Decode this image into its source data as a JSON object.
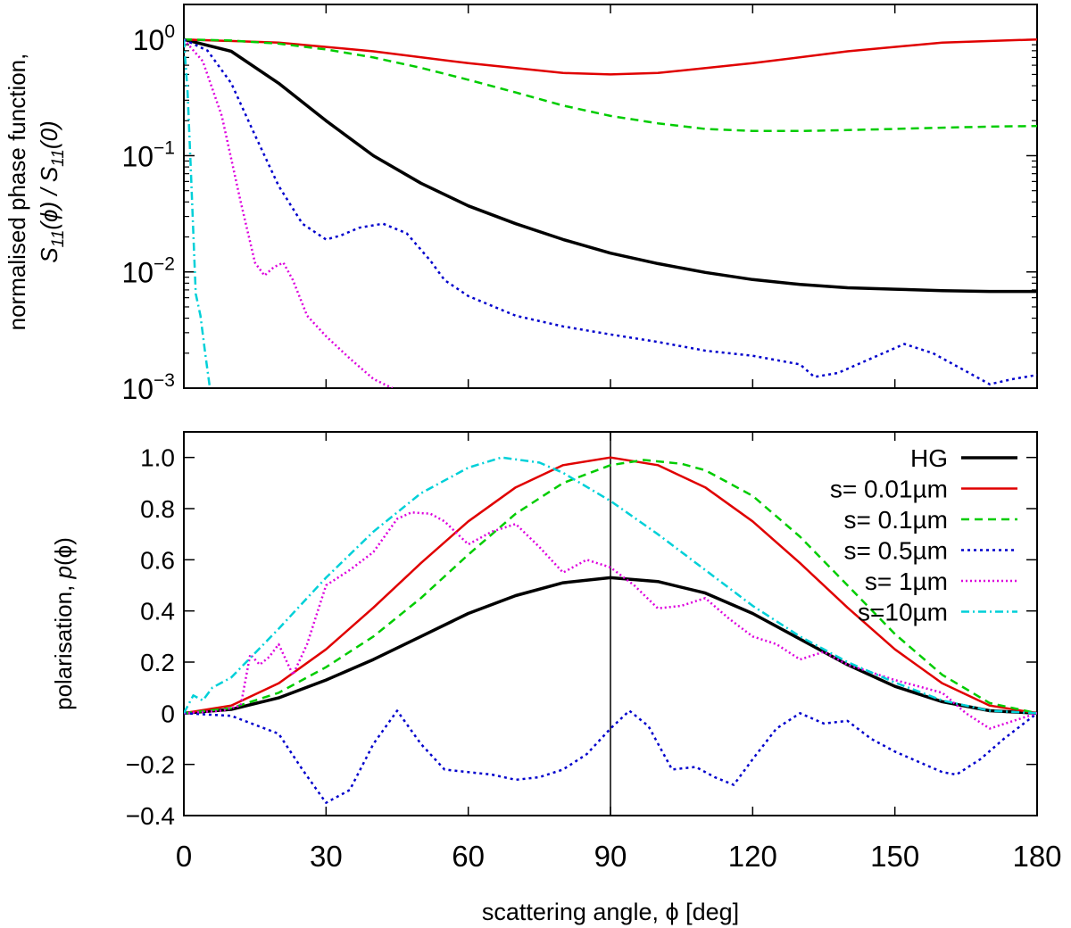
{
  "chart_data": [
    {
      "type": "line",
      "yscale": "log",
      "xlim": [
        0,
        180
      ],
      "ylim": [
        0.001,
        2
      ],
      "xticks": [
        0,
        30,
        60,
        90,
        120,
        150,
        180
      ],
      "yticks": [
        {
          "value": 1,
          "base": "10",
          "exp": "0"
        },
        {
          "value": 0.1,
          "base": "10",
          "exp": "−1"
        },
        {
          "value": 0.01,
          "base": "10",
          "exp": "−2"
        },
        {
          "value": 0.001,
          "base": "10",
          "exp": "−3"
        }
      ],
      "ylabel_line1": "normalised phase function,",
      "ylabel_line2": {
        "a": "S",
        "a_sub": "11",
        "b": "(ϕ) / ",
        "c": "S",
        "c_sub": "11",
        "d": "(0)"
      },
      "series": [
        {
          "name": "HG",
          "color": "#000000",
          "dash": "",
          "width": 3.5,
          "x": [
            0,
            10,
            20,
            30,
            40,
            50,
            60,
            70,
            80,
            90,
            100,
            110,
            120,
            130,
            140,
            150,
            160,
            170,
            180
          ],
          "y": [
            1,
            0.79,
            0.42,
            0.2,
            0.1,
            0.058,
            0.037,
            0.026,
            0.019,
            0.0145,
            0.0118,
            0.0099,
            0.0086,
            0.0078,
            0.0073,
            0.0071,
            0.0069,
            0.0068,
            0.0068
          ]
        },
        {
          "name": "s=  0.01µm",
          "color": "#e00000",
          "dash": "",
          "width": 2.5,
          "x": [
            0,
            20,
            40,
            60,
            80,
            90,
            100,
            120,
            140,
            160,
            180
          ],
          "y": [
            1,
            0.94,
            0.79,
            0.625,
            0.515,
            0.5,
            0.515,
            0.625,
            0.79,
            0.94,
            1
          ]
        },
        {
          "name": "s=  0.1µm",
          "color": "#00cc00",
          "dash": "9,6",
          "width": 2.5,
          "x": [
            0,
            10,
            20,
            30,
            40,
            50,
            60,
            70,
            80,
            90,
            100,
            110,
            120,
            130,
            140,
            150,
            160,
            170,
            180
          ],
          "y": [
            1,
            0.98,
            0.92,
            0.82,
            0.7,
            0.57,
            0.45,
            0.35,
            0.27,
            0.22,
            0.19,
            0.17,
            0.163,
            0.163,
            0.166,
            0.17,
            0.174,
            0.178,
            0.18
          ]
        },
        {
          "name": "s=  0.5µm",
          "color": "#0000cc",
          "dash": "3,4",
          "width": 2.5,
          "x": [
            0,
            5,
            10,
            15,
            20,
            25,
            30,
            33,
            37,
            42,
            47,
            52,
            55,
            60,
            70,
            80,
            90,
            100,
            110,
            120,
            130,
            133,
            138,
            145,
            152,
            158,
            165,
            170,
            175,
            180
          ],
          "y": [
            1,
            0.8,
            0.42,
            0.15,
            0.055,
            0.026,
            0.019,
            0.0205,
            0.024,
            0.026,
            0.0215,
            0.0125,
            0.0085,
            0.0062,
            0.0042,
            0.0034,
            0.0029,
            0.0025,
            0.0021,
            0.0019,
            0.0016,
            0.00125,
            0.00135,
            0.0018,
            0.0024,
            0.002,
            0.0014,
            0.00108,
            0.0012,
            0.0013
          ]
        },
        {
          "name": "s=  1µm",
          "color": "#dd00dd",
          "dash": "2,3",
          "width": 2.5,
          "x": [
            0,
            4,
            8,
            12,
            15,
            17,
            19,
            21,
            23,
            26,
            30,
            35,
            40,
            44
          ],
          "y": [
            1,
            0.65,
            0.22,
            0.04,
            0.012,
            0.0093,
            0.011,
            0.012,
            0.0085,
            0.0042,
            0.0028,
            0.0018,
            0.0012,
            0.001
          ]
        },
        {
          "name": "s=10µm",
          "color": "#00d0d8",
          "dash": "9,4,2,4",
          "width": 2.5,
          "x": [
            0,
            0.8,
            1.5,
            2.5,
            3.5,
            4.5,
            5.5
          ],
          "y": [
            1,
            0.35,
            0.07,
            0.0065,
            0.0042,
            0.002,
            0.001
          ]
        }
      ]
    },
    {
      "type": "line",
      "xlim": [
        0,
        180
      ],
      "ylim": [
        -0.4,
        1.1
      ],
      "xticks": [
        0,
        30,
        60,
        90,
        120,
        150,
        180
      ],
      "yticks": [
        1.0,
        0.8,
        0.6,
        0.4,
        0.2,
        0,
        -0.2,
        -0.4
      ],
      "ytick_labels": [
        "1.0",
        "0.8",
        "0.6",
        "0.4",
        "0.2",
        "0",
        "−0.2",
        "−0.4"
      ],
      "ylabel": {
        "a": "polarisation, ",
        "b": "p",
        "c": "(ϕ)"
      },
      "xlabel": "scattering angle, ϕ [deg]",
      "vline_x": 90,
      "legend_position": "top-right",
      "series": [
        {
          "name": "HG",
          "color": "#000000",
          "dash": "",
          "width": 3.5,
          "x": [
            0,
            10,
            20,
            30,
            40,
            50,
            60,
            70,
            80,
            90,
            100,
            110,
            120,
            130,
            140,
            150,
            160,
            170,
            180
          ],
          "y": [
            0,
            0.015,
            0.06,
            0.13,
            0.21,
            0.3,
            0.39,
            0.46,
            0.51,
            0.53,
            0.515,
            0.47,
            0.39,
            0.29,
            0.19,
            0.105,
            0.045,
            0.01,
            0
          ]
        },
        {
          "name": "s=  0.01µm",
          "color": "#e00000",
          "dash": "",
          "width": 2.5,
          "x": [
            0,
            10,
            20,
            30,
            40,
            50,
            60,
            70,
            80,
            90,
            100,
            110,
            120,
            130,
            140,
            150,
            160,
            170,
            180
          ],
          "y": [
            0,
            0.03,
            0.117,
            0.25,
            0.413,
            0.587,
            0.75,
            0.883,
            0.97,
            1,
            0.97,
            0.883,
            0.75,
            0.587,
            0.413,
            0.25,
            0.117,
            0.03,
            0
          ]
        },
        {
          "name": "s=  0.1µm",
          "color": "#00cc00",
          "dash": "9,6",
          "width": 2.5,
          "x": [
            0,
            10,
            20,
            30,
            40,
            50,
            60,
            70,
            80,
            90,
            97,
            105,
            110,
            120,
            130,
            140,
            150,
            160,
            170,
            180
          ],
          "y": [
            0,
            0.02,
            0.08,
            0.18,
            0.3,
            0.45,
            0.62,
            0.78,
            0.9,
            0.97,
            0.99,
            0.975,
            0.95,
            0.85,
            0.69,
            0.5,
            0.31,
            0.15,
            0.04,
            0
          ]
        },
        {
          "name": "s=  0.5µm",
          "color": "#0000cc",
          "dash": "3,4",
          "width": 2.5,
          "x": [
            0,
            10,
            20,
            25,
            30,
            35,
            40,
            45,
            50,
            55,
            60,
            65,
            70,
            75,
            80,
            85,
            90,
            94,
            98,
            103,
            108,
            112,
            116,
            120,
            125,
            130,
            135,
            140,
            145,
            150,
            155,
            160,
            163,
            168,
            173,
            180
          ],
          "y": [
            0,
            -0.01,
            -0.08,
            -0.22,
            -0.35,
            -0.3,
            -0.12,
            0.01,
            -0.12,
            -0.22,
            -0.23,
            -0.24,
            -0.26,
            -0.25,
            -0.22,
            -0.16,
            -0.06,
            0.01,
            -0.05,
            -0.22,
            -0.21,
            -0.25,
            -0.28,
            -0.18,
            -0.06,
            0,
            -0.04,
            -0.03,
            -0.1,
            -0.15,
            -0.19,
            -0.23,
            -0.24,
            -0.18,
            -0.1,
            0
          ]
        },
        {
          "name": "s=  1µm",
          "color": "#dd00dd",
          "dash": "2,3",
          "width": 2.5,
          "x": [
            0,
            8,
            12,
            14,
            16,
            18,
            20,
            23,
            26,
            30,
            35,
            40,
            45,
            48,
            52,
            55,
            60,
            65,
            70,
            75,
            80,
            85,
            90,
            95,
            100,
            105,
            110,
            115,
            120,
            125,
            130,
            135,
            140,
            150,
            160,
            165,
            170,
            175,
            180
          ],
          "y": [
            0,
            0.01,
            0.03,
            0.23,
            0.19,
            0.22,
            0.27,
            0.15,
            0.27,
            0.5,
            0.56,
            0.63,
            0.76,
            0.785,
            0.78,
            0.75,
            0.66,
            0.71,
            0.74,
            0.65,
            0.55,
            0.6,
            0.57,
            0.5,
            0.41,
            0.42,
            0.45,
            0.37,
            0.3,
            0.27,
            0.21,
            0.24,
            0.19,
            0.13,
            0.08,
            0.0,
            -0.06,
            -0.03,
            0
          ]
        },
        {
          "name": "s=10µm",
          "color": "#00d0d8",
          "dash": "9,4,2,4",
          "width": 2.5,
          "x": [
            0,
            2,
            4,
            6,
            10,
            20,
            30,
            40,
            50,
            60,
            67,
            75,
            80,
            90,
            100,
            110,
            120,
            130,
            140,
            150,
            160,
            170,
            180
          ],
          "y": [
            0,
            0.07,
            0.05,
            0.1,
            0.14,
            0.33,
            0.53,
            0.71,
            0.86,
            0.96,
            1.0,
            0.98,
            0.94,
            0.83,
            0.7,
            0.56,
            0.42,
            0.3,
            0.2,
            0.12,
            0.05,
            0.01,
            0
          ]
        }
      ]
    }
  ]
}
